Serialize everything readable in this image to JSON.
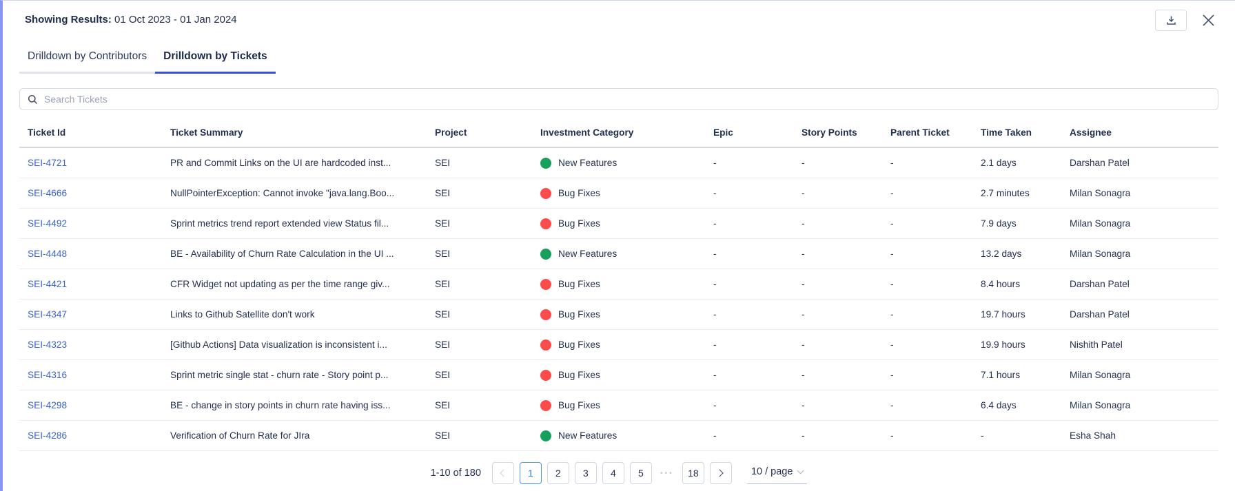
{
  "panel": {
    "showing_results_label": "Showing Results:",
    "date_range": "01 Oct 2023 - 01 Jan 2024"
  },
  "tabs": [
    {
      "label": "Drilldown by Contributors",
      "active": false
    },
    {
      "label": "Drilldown by Tickets",
      "active": true
    }
  ],
  "search": {
    "placeholder": "Search Tickets"
  },
  "table": {
    "columns": [
      "Ticket Id",
      "Ticket Summary",
      "Project",
      "Investment Category",
      "Epic",
      "Story Points",
      "Parent Ticket",
      "Time Taken",
      "Assignee"
    ],
    "rows": [
      {
        "ticket_id": "SEI-4721",
        "summary": "PR and Commit Links on the UI are hardcoded inst...",
        "project": "SEI",
        "category": "New Features",
        "category_color": "#16a05c",
        "epic": "-",
        "story_points": "-",
        "parent_ticket": "-",
        "time_taken": "2.1 days",
        "assignee": "Darshan Patel"
      },
      {
        "ticket_id": "SEI-4666",
        "summary": "NullPointerException: Cannot invoke \"java.lang.Boo...",
        "project": "SEI",
        "category": "Bug Fixes",
        "category_color": "#fb4b4b",
        "epic": "-",
        "story_points": "-",
        "parent_ticket": "-",
        "time_taken": "2.7 minutes",
        "assignee": "Milan Sonagra"
      },
      {
        "ticket_id": "SEI-4492",
        "summary": "Sprint metrics trend report extended view Status fil...",
        "project": "SEI",
        "category": "Bug Fixes",
        "category_color": "#fb4b4b",
        "epic": "-",
        "story_points": "-",
        "parent_ticket": "-",
        "time_taken": "7.9 days",
        "assignee": "Milan Sonagra"
      },
      {
        "ticket_id": "SEI-4448",
        "summary": "BE - Availability of Churn Rate Calculation in the UI ...",
        "project": "SEI",
        "category": "New Features",
        "category_color": "#16a05c",
        "epic": "-",
        "story_points": "-",
        "parent_ticket": "-",
        "time_taken": "13.2 days",
        "assignee": "Milan Sonagra"
      },
      {
        "ticket_id": "SEI-4421",
        "summary": "CFR Widget not updating as per the time range giv...",
        "project": "SEI",
        "category": "Bug Fixes",
        "category_color": "#fb4b4b",
        "epic": "-",
        "story_points": "-",
        "parent_ticket": "-",
        "time_taken": "8.4 hours",
        "assignee": "Darshan Patel"
      },
      {
        "ticket_id": "SEI-4347",
        "summary": "Links to Github Satellite don't work",
        "project": "SEI",
        "category": "Bug Fixes",
        "category_color": "#fb4b4b",
        "epic": "-",
        "story_points": "-",
        "parent_ticket": "-",
        "time_taken": "19.7 hours",
        "assignee": "Darshan Patel"
      },
      {
        "ticket_id": "SEI-4323",
        "summary": "[Github Actions] Data visualization is inconsistent i...",
        "project": "SEI",
        "category": "Bug Fixes",
        "category_color": "#fb4b4b",
        "epic": "-",
        "story_points": "-",
        "parent_ticket": "-",
        "time_taken": "19.9 hours",
        "assignee": "Nishith Patel"
      },
      {
        "ticket_id": "SEI-4316",
        "summary": "Sprint metric single stat - churn rate - Story point p...",
        "project": "SEI",
        "category": "Bug Fixes",
        "category_color": "#fb4b4b",
        "epic": "-",
        "story_points": "-",
        "parent_ticket": "-",
        "time_taken": "7.1 hours",
        "assignee": "Milan Sonagra"
      },
      {
        "ticket_id": "SEI-4298",
        "summary": "BE - change in story points in churn rate having iss...",
        "project": "SEI",
        "category": "Bug Fixes",
        "category_color": "#fb4b4b",
        "epic": "-",
        "story_points": "-",
        "parent_ticket": "-",
        "time_taken": "6.4 days",
        "assignee": "Milan Sonagra"
      },
      {
        "ticket_id": "SEI-4286",
        "summary": "Verification of Churn Rate for JIra",
        "project": "SEI",
        "category": "New Features",
        "category_color": "#16a05c",
        "epic": "-",
        "story_points": "-",
        "parent_ticket": "-",
        "time_taken": "-",
        "assignee": "Esha Shah"
      }
    ]
  },
  "pagination": {
    "range_text": "1-10 of 180",
    "active_page": "1",
    "pages": [
      "1",
      "2",
      "3",
      "4",
      "5"
    ],
    "ellipsis": "•••",
    "last_page": "18",
    "page_size_label": "10 / page"
  },
  "colors": {
    "accent_left_border": "#8995f2",
    "active_tab_underline": "#3a50cc",
    "ticket_link": "#3b63d8",
    "category_new_features": "#16a05c",
    "category_bug_fixes": "#fb4b4b",
    "active_page_border": "#4c94f4"
  }
}
